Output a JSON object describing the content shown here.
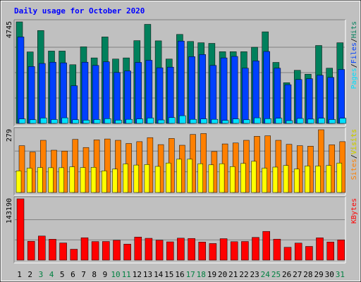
{
  "chart_data": {
    "type": "bar",
    "title": "Daily usage for October 2020",
    "categories": [
      "1",
      "2",
      "3",
      "4",
      "5",
      "6",
      "7",
      "8",
      "9",
      "10",
      "11",
      "12",
      "13",
      "14",
      "15",
      "16",
      "17",
      "18",
      "19",
      "20",
      "21",
      "22",
      "23",
      "24",
      "25",
      "26",
      "27",
      "28",
      "29",
      "30",
      "31"
    ],
    "weekend_days": [
      "3",
      "4",
      "10",
      "11",
      "17",
      "18",
      "24",
      "25",
      "31"
    ],
    "panels": [
      {
        "name": "hits-files-pages",
        "ymax_label": "4745",
        "ymax": 4745,
        "legend": [
          "Pages",
          "/",
          "Files",
          "/",
          "Hits"
        ],
        "series": [
          {
            "name": "Hits",
            "color": "#00805c",
            "values": [
              4745,
              3340,
              4340,
              3380,
              3380,
              2740,
              3580,
              3060,
              4040,
              3010,
              3060,
              3870,
              4630,
              3860,
              3010,
              4160,
              3830,
              3770,
              3740,
              3350,
              3350,
              3350,
              3560,
              4280,
              2850,
              1900,
              2480,
              2300,
              3640,
              2580,
              3770
            ]
          },
          {
            "name": "Files",
            "color": "#0040ff",
            "values": [
              4040,
              2660,
              2800,
              2860,
              2830,
              1760,
              2860,
              2710,
              2880,
              2380,
              2450,
              2850,
              2950,
              2600,
              2630,
              3850,
              3120,
              3220,
              2710,
              3060,
              3130,
              2580,
              2920,
              3360,
              2580,
              1810,
              2050,
              2090,
              2250,
              2150,
              2520
            ]
          },
          {
            "name": "Pages",
            "color": "#00e0ff",
            "values": [
              210,
              170,
              250,
              180,
              260,
              170,
              150,
              180,
              220,
              150,
              190,
              210,
              250,
              160,
              270,
              360,
              190,
              210,
              190,
              140,
              210,
              170,
              260,
              220,
              240,
              130,
              230,
              200,
              240,
              180,
              240
            ]
          }
        ]
      },
      {
        "name": "sites-visits",
        "ymax_label": "279",
        "ymax": 279,
        "legend": [
          "Sites",
          "/",
          "Visits"
        ],
        "series": [
          {
            "name": "Sites",
            "color": "#ff8000",
            "values": [
              208,
              180,
              232,
              188,
              184,
              236,
              200,
              234,
              238,
              232,
              218,
              226,
              244,
              213,
              240,
              210,
              258,
              262,
              182,
              216,
              220,
              232,
              250,
              252,
              232,
              214,
              208,
              206,
              279,
              212,
              226
            ]
          },
          {
            "name": "Visits",
            "color": "#ffff00",
            "values": [
              96,
              108,
              111,
              110,
              110,
              114,
              111,
              112,
              96,
              104,
              127,
              122,
              124,
              116,
              131,
              148,
              148,
              128,
              123,
              128,
              115,
              129,
              139,
              108,
              113,
              120,
              104,
              118,
              118,
              120,
              131
            ]
          }
        ]
      },
      {
        "name": "kbytes",
        "ymax_label": "143190",
        "ymax": 143190,
        "legend": [
          "KBytes"
        ],
        "series": [
          {
            "name": "KBytes",
            "color": "#ff0000",
            "values": [
              143190,
              44050,
              56370,
              48860,
              40150,
              25590,
              52410,
              43450,
              43600,
              46390,
              37590,
              53960,
              50950,
              46600,
              42840,
              51290,
              50650,
              42370,
              38920,
              50280,
              43120,
              43550,
              53110,
              67080,
              48980,
              30150,
              39890,
              32110,
              52160,
              42520,
              47270
            ]
          }
        ]
      }
    ],
    "colors": {
      "title": "#0000ff",
      "weekday_label": "#000000",
      "weekend_label": "#008040",
      "panel_bg": "#c0c0c0",
      "border": "#000000"
    }
  }
}
